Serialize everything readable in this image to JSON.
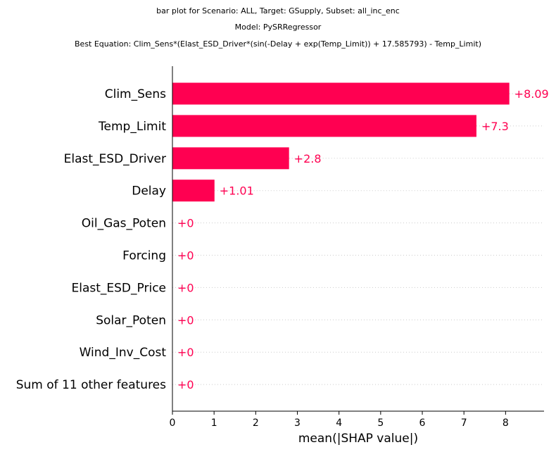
{
  "chart_data": {
    "type": "bar",
    "title_lines": [
      "bar plot for Scenario: ALL, Target: GSupply, Subset: all_inc_enc",
      "Model: PySRRegressor",
      "Best Equation: Clim_Sens*(Elast_ESD_Driver*(sin(-Delay + exp(Temp_Limit)) + 17.585793) - Temp_Limit)"
    ],
    "categories": [
      "Clim_Sens",
      "Temp_Limit",
      "Elast_ESD_Driver",
      "Delay",
      "Oil_Gas_Poten",
      "Forcing",
      "Elast_ESD_Price",
      "Solar_Poten",
      "Wind_Inv_Cost",
      "Sum of 11 other features"
    ],
    "values": [
      8.09,
      7.3,
      2.8,
      1.01,
      0,
      0,
      0,
      0,
      0,
      0
    ],
    "value_labels": [
      "+8.09",
      "+7.3",
      "+2.8",
      "+1.01",
      "+0",
      "+0",
      "+0",
      "+0",
      "+0",
      "+0"
    ],
    "xlabel": "mean(|SHAP value|)",
    "ylabel": "",
    "xlim": [
      0,
      8.95
    ],
    "xticks": [
      0,
      1,
      2,
      3,
      4,
      5,
      6,
      7,
      8
    ],
    "orientation": "horizontal",
    "grid": "dotted row guides",
    "colors": {
      "bar": "#ff0051",
      "label": "#ff0051",
      "axis": "#000000",
      "guide": "#cccccc"
    }
  }
}
